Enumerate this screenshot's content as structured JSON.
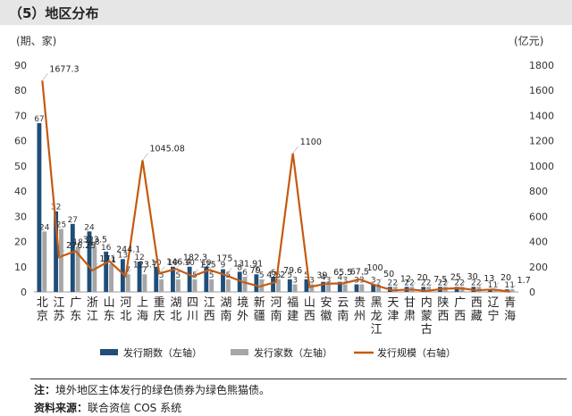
{
  "header": {
    "title": "（5）地区分布"
  },
  "footer": {
    "note_label": "注：",
    "note_text": "境外地区主体发行的绿色债券为绿色熊猫债。",
    "source_label": "资料来源：",
    "source_text": "联合资信 COS 系统"
  },
  "chart_data": {
    "type": "bar+line",
    "left_axis_unit": "(期、家)",
    "right_axis_unit": "(亿元)",
    "left_ylim": [
      0,
      90
    ],
    "left_ticks": [
      0,
      10,
      20,
      30,
      40,
      50,
      60,
      70,
      80,
      90
    ],
    "right_ylim": [
      0,
      1800
    ],
    "right_ticks": [
      0,
      200,
      400,
      600,
      800,
      1000,
      1200,
      1400,
      1600,
      1800
    ],
    "categories": [
      "北京",
      "江苏",
      "广东",
      "浙江",
      "山东",
      "河北",
      "上海",
      "重庆",
      "湖北",
      "四川",
      "江西",
      "湖南",
      "境外",
      "新疆",
      "河南",
      "福建",
      "山西",
      "安徽",
      "云南",
      "贵州",
      "黑龙江",
      "天津",
      "甘肃",
      "内蒙古",
      "陕西",
      "广西",
      "西藏",
      "辽宁",
      "青海"
    ],
    "series": [
      {
        "name": "发行期数（左轴）",
        "type": "bar",
        "axis": "left",
        "color": "#1f4e79",
        "values": [
          67,
          32,
          27,
          24,
          16,
          13,
          12,
          10,
          10,
          10,
          10,
          9,
          8,
          7,
          6,
          5,
          5,
          4,
          4,
          3,
          3,
          2,
          2,
          2,
          2,
          2,
          2,
          1,
          1
        ]
      },
      {
        "name": "发行家数（左轴）",
        "type": "bar",
        "axis": "left",
        "color": "#a6a6a6",
        "values": [
          24,
          25,
          18,
          18,
          11,
          7,
          7,
          5,
          5,
          5,
          5,
          5,
          6,
          5,
          5,
          3,
          3,
          3,
          3,
          3,
          2,
          2,
          2,
          2,
          2,
          2,
          2,
          1,
          1
        ]
      },
      {
        "name": "发行规模（右轴）",
        "type": "line",
        "axis": "right",
        "color": "#c55a11",
        "values": [
          1677.3,
          276.29,
          323.5,
          171,
          244.1,
          123.7,
          1045.08,
          146.4,
          182.3,
          125,
          175,
          131.91,
          79,
          42.2,
          79.6,
          1100,
          39,
          65.5,
          67.5,
          100,
          50,
          12,
          20,
          7.5,
          25,
          30,
          13,
          20,
          1.7
        ],
        "labels": [
          "1677.3",
          "276.29",
          "323.5",
          "171",
          "244.1",
          "123.7",
          "1045.08",
          "146.4",
          "182.3",
          "125",
          "175",
          "131.91",
          "79",
          "42.2",
          "79.6",
          "1100",
          "39",
          "65.5",
          "67.5",
          "100",
          "50",
          "12",
          "20",
          "7.5",
          "25",
          "30",
          "13",
          "20",
          "1.7"
        ]
      }
    ],
    "legend": [
      "发行期数（左轴）",
      "发行家数（左轴）",
      "发行规模（右轴）"
    ],
    "legend_position": "bottom"
  }
}
